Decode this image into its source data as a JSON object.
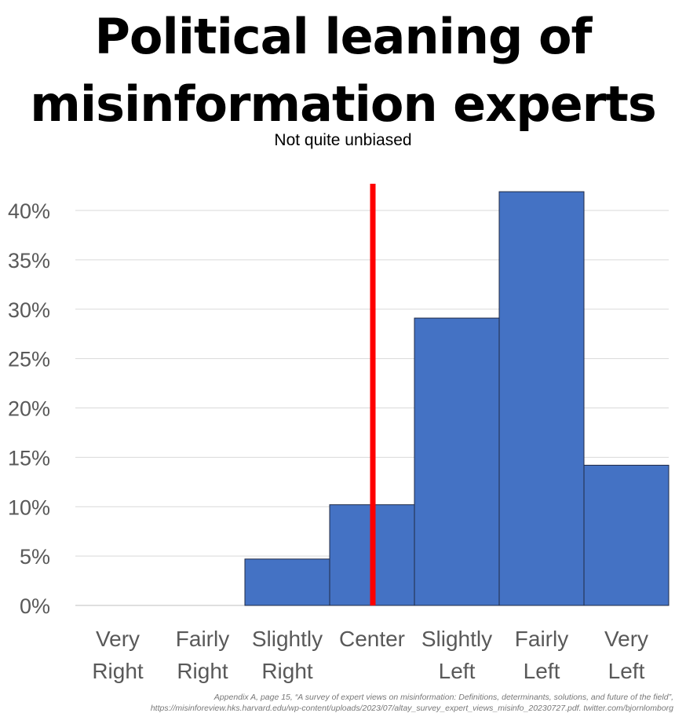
{
  "title_lines": [
    "Political leaning of",
    "misinformation experts"
  ],
  "subtitle": "Not quite unbiased",
  "source_lines": [
    "Appendix A, page 15, “A survey of expert views on misinformation: Definitions, determinants, solutions, and future of the field”,",
    "https://misinforeview.hks.harvard.edu/wp-content/uploads/2023/07/altay_survey_expert_views_misinfo_20230727.pdf. twitter.com/bjornlomborg"
  ],
  "colors": {
    "bar": "#4472C4",
    "bar_border": "#1f2a44",
    "center_line": "#FF0000",
    "grid": "#d9d9d9",
    "tick_label": "#595959"
  },
  "chart_data": {
    "type": "bar",
    "categories": [
      [
        "Very",
        "Right"
      ],
      [
        "Fairly",
        "Right"
      ],
      [
        "Slightly",
        "Right"
      ],
      [
        "Center"
      ],
      [
        "Slightly",
        "Left"
      ],
      [
        "Fairly",
        "Left"
      ],
      [
        "Very",
        "Left"
      ]
    ],
    "values": [
      0,
      0,
      4.7,
      10.2,
      29.1,
      41.9,
      14.2
    ],
    "y_ticks": [
      "0%",
      "5%",
      "10%",
      "15%",
      "20%",
      "25%",
      "30%",
      "35%",
      "40%"
    ],
    "ylim": [
      0,
      40
    ],
    "grid": true,
    "bar_gap": 0,
    "center_marker": "red vertical line at Center category"
  }
}
